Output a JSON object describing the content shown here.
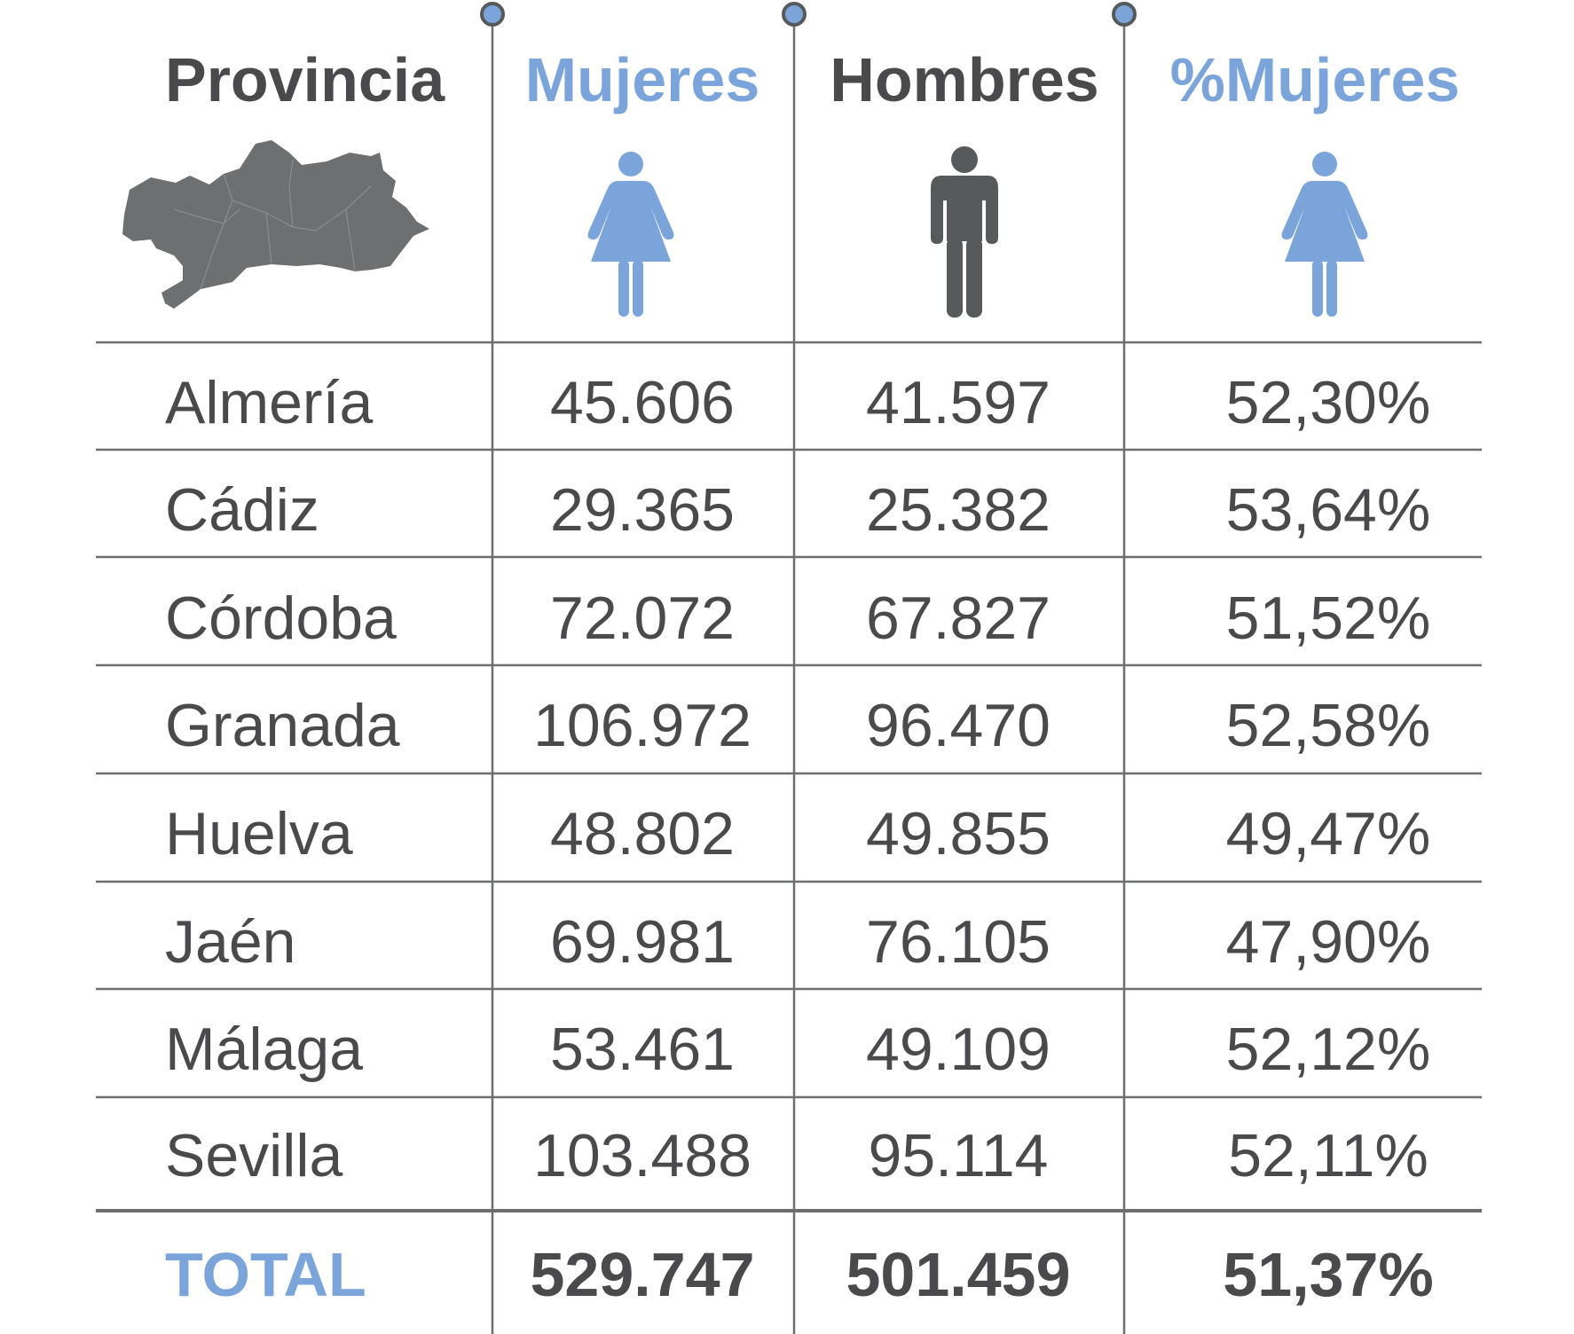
{
  "chart_data": {
    "type": "table",
    "columns": [
      "Provincia",
      "Mujeres",
      "Hombres",
      "%Mujeres"
    ],
    "rows": [
      {
        "provincia": "Almería",
        "mujeres": "45.606",
        "hombres": "41.597",
        "pct": "52,30%"
      },
      {
        "provincia": "Cádiz",
        "mujeres": "29.365",
        "hombres": "25.382",
        "pct": "53,64%"
      },
      {
        "provincia": "Córdoba",
        "mujeres": "72.072",
        "hombres": "67.827",
        "pct": "51,52%"
      },
      {
        "provincia": "Granada",
        "mujeres": "106.972",
        "hombres": "96.470",
        "pct": "52,58%"
      },
      {
        "provincia": "Huelva",
        "mujeres": "48.802",
        "hombres": "49.855",
        "pct": "49,47%"
      },
      {
        "provincia": "Jaén",
        "mujeres": "69.981",
        "hombres": "76.105",
        "pct": "47,90%"
      },
      {
        "provincia": "Málaga",
        "mujeres": "53.461",
        "hombres": "49.109",
        "pct": "52,12%"
      },
      {
        "provincia": "Sevilla",
        "mujeres": "103.488",
        "hombres": "95.114",
        "pct": "52,11%"
      }
    ],
    "total": {
      "label": "TOTAL",
      "mujeres": "529.747",
      "hombres": "501.459",
      "pct": "51,37%"
    }
  },
  "icons": {
    "provincia": "andalucia-map-icon",
    "mujeres": "woman-icon",
    "hombres": "man-icon",
    "pct_mujeres": "woman-icon"
  },
  "colors": {
    "text_dark": "#4a4a4c",
    "accent_blue": "#7aa4da",
    "map_grey": "#6e6f71",
    "rule": "#6d6e70"
  }
}
